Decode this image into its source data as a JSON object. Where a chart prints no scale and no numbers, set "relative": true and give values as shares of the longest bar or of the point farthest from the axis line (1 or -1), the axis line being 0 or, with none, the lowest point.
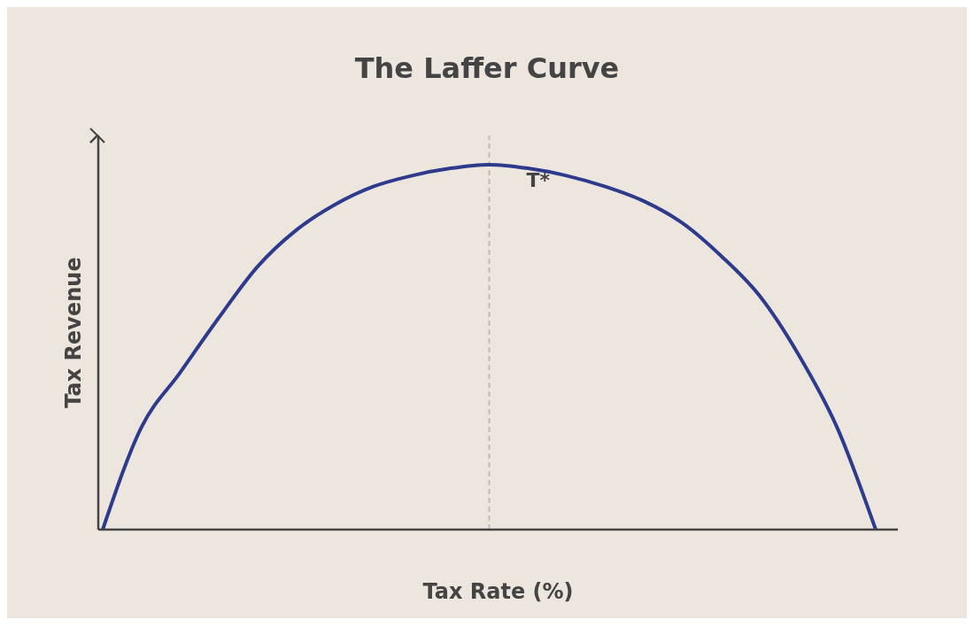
{
  "chart_data": {
    "type": "line",
    "title": "The Laffer Curve",
    "xlabel": "Tax Rate (%)",
    "ylabel": "Tax Revenue",
    "relative": true,
    "categories": [
      null,
      null,
      null,
      null,
      null,
      null,
      null,
      null,
      null,
      null,
      null,
      null,
      null,
      null,
      null,
      null,
      null,
      null,
      null,
      null,
      null
    ],
    "series": [
      {
        "color": "#2e3a8c",
        "values": [
          0,
          0.28,
          0.43,
          0.58,
          0.72,
          0.82,
          0.89,
          0.94,
          0.97,
          0.99,
          1,
          0.99,
          0.97,
          0.94,
          0.9,
          0.84,
          0.75,
          0.64,
          0.48,
          0.28,
          0
        ]
      }
    ],
    "annotations": [
      "T*"
    ],
    "marker": "none",
    "line_style": "solid",
    "grid": false,
    "legend": false
  }
}
